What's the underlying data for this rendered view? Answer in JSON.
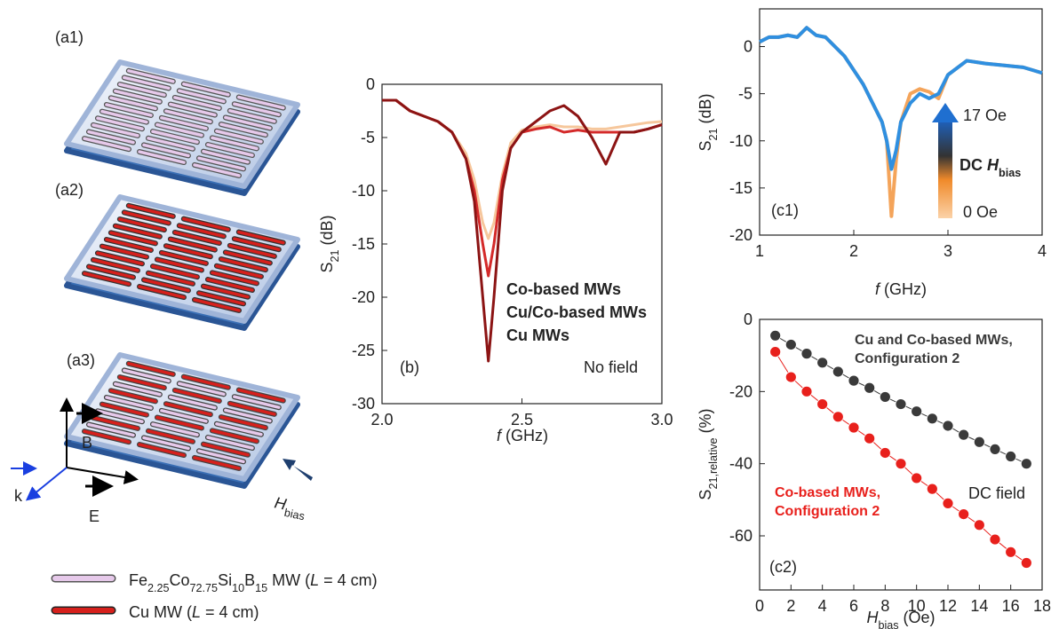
{
  "figure": {
    "panels": [
      "(a1)",
      "(a2)",
      "(a3)"
    ],
    "axes": [
      "B",
      "E",
      "k"
    ],
    "field": [
      {
        "text": "H",
        "format": "italic"
      },
      {
        "text": "bias",
        "format": "sub"
      }
    ],
    "legend": [
      [
        {
          "text": "Fe",
          "format": "normal"
        },
        {
          "text": "2.25",
          "format": "sub"
        },
        {
          "text": "Co",
          "format": "normal"
        },
        {
          "text": "72.75",
          "format": "sub"
        },
        {
          "text": "Si",
          "format": "normal"
        },
        {
          "text": "10",
          "format": "sub"
        },
        {
          "text": "B",
          "format": "normal"
        },
        {
          "text": "15",
          "format": "sub"
        },
        {
          "text": " MW (",
          "format": "normal"
        },
        {
          "text": "L",
          "format": "italic"
        },
        {
          "text": " = 4 cm)",
          "format": "normal"
        }
      ],
      [
        {
          "text": "Cu MW (",
          "format": "normal"
        },
        {
          "text": "L",
          "format": "italic"
        },
        {
          "text": " = 4 cm)",
          "format": "normal"
        }
      ]
    ]
  },
  "chart_data": [
    {
      "type": "line",
      "x": [
        2.0,
        2.05,
        2.1,
        2.15,
        2.2,
        2.25,
        2.3,
        2.33,
        2.36,
        2.38,
        2.4,
        2.43,
        2.46,
        2.5,
        2.55,
        2.6,
        2.65,
        2.7,
        2.75,
        2.8,
        2.85,
        2.9,
        2.95,
        3.0
      ],
      "series": [
        {
          "name": "Co-based MWs",
          "color": "#f6c79c",
          "values": [
            -1.5,
            -1.5,
            -2.5,
            -3,
            -3.5,
            -4.5,
            -6.5,
            -9,
            -13,
            -14.5,
            -13,
            -8.5,
            -5.5,
            -4.3,
            -4,
            -3.8,
            -4,
            -4,
            -4.2,
            -4.2,
            -4,
            -3.8,
            -3.6,
            -3.5
          ]
        },
        {
          "name": "Cu/Co-based MWs",
          "color": "#d42a2a",
          "values": [
            -1.5,
            -1.5,
            -2.5,
            -3,
            -3.5,
            -4.5,
            -7,
            -10,
            -15,
            -18,
            -15,
            -9,
            -6,
            -4.5,
            -4.2,
            -4,
            -4.5,
            -4.3,
            -4.5,
            -4.5,
            -4.5,
            -4.5,
            -4.2,
            -3.8
          ]
        },
        {
          "name": "Cu MWs",
          "color": "#8c1414",
          "values": [
            -1.5,
            -1.5,
            -2.5,
            -3,
            -3.5,
            -4.5,
            -7,
            -11,
            -20,
            -26,
            -20,
            -10,
            -6,
            -4.5,
            -3.5,
            -2.5,
            -2,
            -3,
            -5,
            -7.5,
            -4.5,
            -4.5,
            -4.2,
            -3.8
          ]
        }
      ],
      "xlim": [
        2,
        3
      ],
      "ylim": [
        -30,
        0
      ],
      "xticks": [
        {
          "value": 2,
          "label": "2.0"
        },
        2.5,
        {
          "value": 3,
          "label": "3.0"
        }
      ],
      "yticks": [
        0,
        -5,
        -10,
        -15,
        -20,
        -25,
        -30
      ],
      "xlabel": [
        {
          "text": "f",
          "format": "italic"
        },
        {
          "text": " (GHz)",
          "format": "normal"
        }
      ],
      "ylabel": [
        {
          "text": "S",
          "format": "normal"
        },
        {
          "text": "21",
          "format": "sub"
        },
        {
          "text": " (dB)",
          "format": "normal"
        }
      ],
      "annotations": [
        "(b)",
        "No field"
      ]
    },
    {
      "type": "line",
      "x": [
        1,
        1.1,
        1.2,
        1.3,
        1.4,
        1.5,
        1.6,
        1.7,
        1.8,
        1.9,
        2.0,
        2.1,
        2.2,
        2.3,
        2.35,
        2.4,
        2.45,
        2.5,
        2.6,
        2.7,
        2.8,
        2.9,
        3.0,
        3.2,
        3.4,
        3.6,
        3.8,
        4.0
      ],
      "series": [
        {
          "name": "0 Oe",
          "color": "#f4a45a",
          "values": [
            0.5,
            1,
            1,
            1.2,
            1,
            2,
            1.2,
            1,
            0,
            -1,
            -2.5,
            -4,
            -6,
            -8,
            -10,
            -18,
            -12,
            -8,
            -5,
            -4.5,
            -4.8,
            -5.5,
            -3,
            -1.5,
            -1.8,
            -2,
            -2.2,
            -2.8
          ]
        },
        {
          "name": "17 Oe",
          "color": "#2f8fe0",
          "values": [
            0.5,
            1,
            1,
            1.2,
            1,
            2,
            1.2,
            1,
            0,
            -1,
            -2.5,
            -4,
            -6,
            -8,
            -10,
            -13,
            -11,
            -8,
            -6,
            -5,
            -5.5,
            -5,
            -3,
            -1.5,
            -1.8,
            -2,
            -2.2,
            -2.8
          ]
        }
      ],
      "xlim": [
        1,
        4
      ],
      "ylim": [
        -20,
        4
      ],
      "xticks": [
        1,
        2,
        3,
        4
      ],
      "yticks": [
        0,
        -5,
        -10,
        -15,
        -20
      ],
      "xlabel": [
        {
          "text": "f",
          "format": "italic"
        },
        {
          "text": " (GHz)",
          "format": "normal"
        }
      ],
      "ylabel": [
        {
          "text": "S",
          "format": "normal"
        },
        {
          "text": "21",
          "format": "sub"
        },
        {
          "text": " (dB)",
          "format": "normal"
        }
      ],
      "legend_title": [
        {
          "text": "DC ",
          "format": "normal"
        },
        {
          "text": "H",
          "format": "italic"
        },
        {
          "text": "bias",
          "format": "sub"
        }
      ],
      "annotations": [
        "(c1)"
      ]
    },
    {
      "type": "line",
      "markers": true,
      "x": [
        1,
        2,
        3,
        4,
        5,
        6,
        7,
        8,
        9,
        10,
        11,
        12,
        13,
        14,
        15,
        16,
        17
      ],
      "series": [
        {
          "name": "Cu and Co-based MWs, Configuration 2",
          "color": "#3a3a3a",
          "values": [
            -4.5,
            -7,
            -9.5,
            -12,
            -14.5,
            -17,
            -19,
            -21.5,
            -23.5,
            -25.5,
            -27.5,
            -29.5,
            -32,
            -34,
            -36,
            -38,
            -40
          ]
        },
        {
          "name": "Co-based MWs, Configuration 2",
          "color": "#e8201c",
          "values": [
            -9,
            -16,
            -20,
            -23.5,
            -27,
            -30,
            -33,
            -37,
            -40,
            -44,
            -47,
            -51,
            -54,
            -57,
            -61,
            -64.5,
            -67.5
          ]
        }
      ],
      "xlim": [
        0,
        18
      ],
      "ylim": [
        -75,
        0
      ],
      "xticks": [
        0,
        2,
        4,
        6,
        8,
        10,
        12,
        14,
        16,
        18
      ],
      "yticks": [
        -60,
        -40,
        -20,
        0
      ],
      "xlabel": [
        {
          "text": "H",
          "format": "italic"
        },
        {
          "text": "bias",
          "format": "sub"
        },
        {
          "text": " (Oe)",
          "format": "normal"
        }
      ],
      "ylabel": [
        {
          "text": "S",
          "format": "normal"
        },
        {
          "text": "21,relative",
          "format": "sub"
        },
        {
          "text": " (%)",
          "format": "normal"
        }
      ],
      "annotations": [
        "DC field",
        "(c2)"
      ]
    }
  ]
}
